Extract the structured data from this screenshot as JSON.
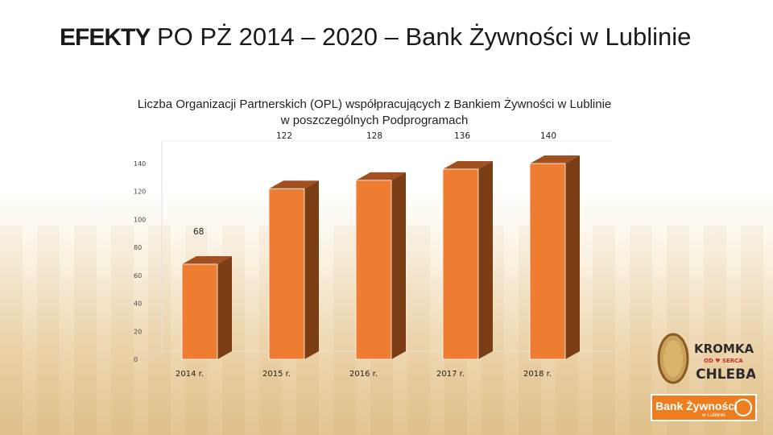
{
  "title": {
    "bold_part": "EFEKTY",
    "rest": " PO PŻ 2014 – 2020 – Bank Żywności w Lublinie"
  },
  "chart_data": {
    "type": "bar",
    "title_line1": "Liczba Organizacji Partnerskich (OPL) współpracujących z Bankiem Żywności w Lublinie",
    "title_line2": "w poszczególnych Podprogramach",
    "categories": [
      "2014 r.",
      "2015 r.",
      "2016 r.",
      "2017 r.",
      "2018 r."
    ],
    "values": [
      68,
      122,
      128,
      136,
      140
    ],
    "data_labels": [
      "68",
      "122",
      "128",
      "136",
      "140"
    ],
    "yticks": [
      0,
      20,
      40,
      60,
      80,
      100,
      120,
      140
    ],
    "ytick_labels": [
      "0",
      "20",
      "40",
      "60",
      "80",
      "100",
      "120",
      "140"
    ],
    "ylim": [
      0,
      140
    ],
    "grid": false,
    "style": "3d-column",
    "colors": {
      "front": "#ee7d31",
      "side": "#7a3d14",
      "top": "#a2501f"
    }
  },
  "logos": {
    "kromka_line1": "KROMKA",
    "kromka_line2": "OD ♥ SERCA",
    "kromka_line3": "CHLEBA",
    "bank_name": "Bank Żywności",
    "bank_sub": "w Lublinie"
  }
}
